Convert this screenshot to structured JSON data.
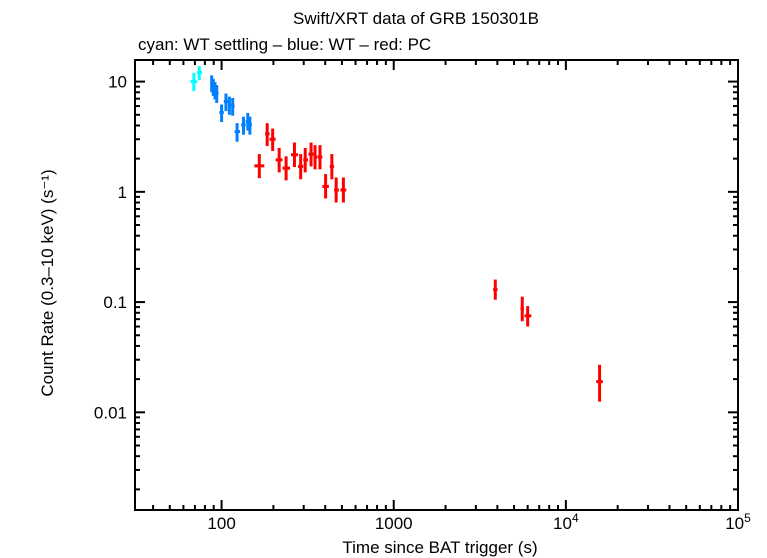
{
  "chart_data": {
    "type": "scatter",
    "title": "Swift/XRT data of GRB 150301B",
    "subtitle": "cyan: WT settling – blue: WT – red: PC",
    "xlabel": "Time since BAT trigger (s)",
    "ylabel": "Count Rate (0.3–10 keV) (s⁻¹)",
    "xscale": "log",
    "yscale": "log",
    "xlim": [
      31.4,
      100000
    ],
    "ylim": [
      0.0013,
      15.7
    ],
    "grid": false,
    "x_ticks": [
      {
        "value": 100,
        "base": "100",
        "exp": ""
      },
      {
        "value": 1000,
        "base": "1000",
        "exp": ""
      },
      {
        "value": 10000,
        "base": "10",
        "exp": "4"
      },
      {
        "value": 100000,
        "base": "10",
        "exp": "5"
      }
    ],
    "y_ticks": [
      {
        "value": 10,
        "label": "10"
      },
      {
        "value": 1,
        "label": "1"
      },
      {
        "value": 0.1,
        "label": "0.1"
      },
      {
        "value": 0.01,
        "label": "0.01"
      }
    ],
    "series": [
      {
        "mode": "WT settling",
        "color": "#00ffff",
        "points": [
          {
            "x": 69,
            "y": 10.0,
            "xlo": 66,
            "xhi": 72,
            "ylo": 8.2,
            "yhi": 12.0
          },
          {
            "x": 74.2,
            "y": 12.1,
            "xlo": 72,
            "xhi": 77,
            "ylo": 10.3,
            "yhi": 13.8
          }
        ]
      },
      {
        "mode": "WT",
        "color": "#0080ff",
        "points": [
          {
            "x": 87.6,
            "y": 9.7,
            "xlo": 86,
            "xhi": 89,
            "ylo": 8.0,
            "yhi": 11.4
          },
          {
            "x": 89.5,
            "y": 9.0,
            "xlo": 88,
            "xhi": 91,
            "ylo": 7.4,
            "yhi": 10.6
          },
          {
            "x": 91.5,
            "y": 8.4,
            "xlo": 90,
            "xhi": 93,
            "ylo": 6.9,
            "yhi": 9.9
          },
          {
            "x": 93.7,
            "y": 7.85,
            "xlo": 92,
            "xhi": 96,
            "ylo": 6.4,
            "yhi": 9.3
          },
          {
            "x": 100,
            "y": 5.24,
            "xlo": 97,
            "xhi": 103,
            "ylo": 4.3,
            "yhi": 6.2
          },
          {
            "x": 106,
            "y": 6.6,
            "xlo": 103,
            "xhi": 109,
            "ylo": 5.4,
            "yhi": 7.8
          },
          {
            "x": 111,
            "y": 6.15,
            "xlo": 109,
            "xhi": 114,
            "ylo": 5.0,
            "yhi": 7.3
          },
          {
            "x": 116,
            "y": 6.0,
            "xlo": 114,
            "xhi": 119,
            "ylo": 4.9,
            "yhi": 7.1
          },
          {
            "x": 123,
            "y": 3.52,
            "xlo": 119,
            "xhi": 128,
            "ylo": 2.85,
            "yhi": 4.2
          },
          {
            "x": 134,
            "y": 4.05,
            "xlo": 130,
            "xhi": 138,
            "ylo": 3.3,
            "yhi": 4.8
          },
          {
            "x": 142,
            "y": 4.35,
            "xlo": 138,
            "xhi": 145,
            "ylo": 3.6,
            "yhi": 5.2
          },
          {
            "x": 146,
            "y": 4.05,
            "xlo": 144,
            "xhi": 150,
            "ylo": 3.3,
            "yhi": 4.8
          }
        ]
      },
      {
        "mode": "PC",
        "color": "#ff0000",
        "points": [
          {
            "x": 165.6,
            "y": 1.72,
            "xlo": 155,
            "xhi": 177,
            "ylo": 1.33,
            "yhi": 2.2
          },
          {
            "x": 184,
            "y": 3.36,
            "xlo": 179,
            "xhi": 190,
            "ylo": 2.6,
            "yhi": 4.2
          },
          {
            "x": 198,
            "y": 3.0,
            "xlo": 190,
            "xhi": 206,
            "ylo": 2.35,
            "yhi": 3.75
          },
          {
            "x": 216,
            "y": 1.95,
            "xlo": 206,
            "xhi": 226,
            "ylo": 1.5,
            "yhi": 2.5
          },
          {
            "x": 237,
            "y": 1.64,
            "xlo": 226,
            "xhi": 250,
            "ylo": 1.27,
            "yhi": 2.1
          },
          {
            "x": 265,
            "y": 2.17,
            "xlo": 253,
            "xhi": 278,
            "ylo": 1.68,
            "yhi": 2.8
          },
          {
            "x": 288,
            "y": 1.7,
            "xlo": 278,
            "xhi": 298,
            "ylo": 1.3,
            "yhi": 2.2
          },
          {
            "x": 306,
            "y": 1.95,
            "xlo": 298,
            "xhi": 318,
            "ylo": 1.5,
            "yhi": 2.5
          },
          {
            "x": 331,
            "y": 2.2,
            "xlo": 320,
            "xhi": 342,
            "ylo": 1.7,
            "yhi": 2.8
          },
          {
            "x": 349,
            "y": 2.07,
            "xlo": 342,
            "xhi": 360,
            "ylo": 1.6,
            "yhi": 2.65
          },
          {
            "x": 373,
            "y": 2.07,
            "xlo": 362,
            "xhi": 385,
            "ylo": 1.6,
            "yhi": 2.65
          },
          {
            "x": 402,
            "y": 1.12,
            "xlo": 385,
            "xhi": 420,
            "ylo": 0.87,
            "yhi": 1.45
          },
          {
            "x": 437,
            "y": 1.7,
            "xlo": 425,
            "xhi": 450,
            "ylo": 1.3,
            "yhi": 2.2
          },
          {
            "x": 463,
            "y": 1.04,
            "xlo": 450,
            "xhi": 480,
            "ylo": 0.8,
            "yhi": 1.35
          },
          {
            "x": 510,
            "y": 1.04,
            "xlo": 490,
            "xhi": 530,
            "ylo": 0.8,
            "yhi": 1.35
          },
          {
            "x": 3890,
            "y": 0.13,
            "xlo": 3780,
            "xhi": 4010,
            "ylo": 0.105,
            "yhi": 0.16
          },
          {
            "x": 5580,
            "y": 0.087,
            "xlo": 5450,
            "xhi": 5700,
            "ylo": 0.067,
            "yhi": 0.112
          },
          {
            "x": 6000,
            "y": 0.075,
            "xlo": 5750,
            "xhi": 6300,
            "ylo": 0.06,
            "yhi": 0.092
          },
          {
            "x": 15700,
            "y": 0.019,
            "xlo": 15000,
            "xhi": 16400,
            "ylo": 0.0125,
            "yhi": 0.027
          }
        ]
      }
    ]
  }
}
